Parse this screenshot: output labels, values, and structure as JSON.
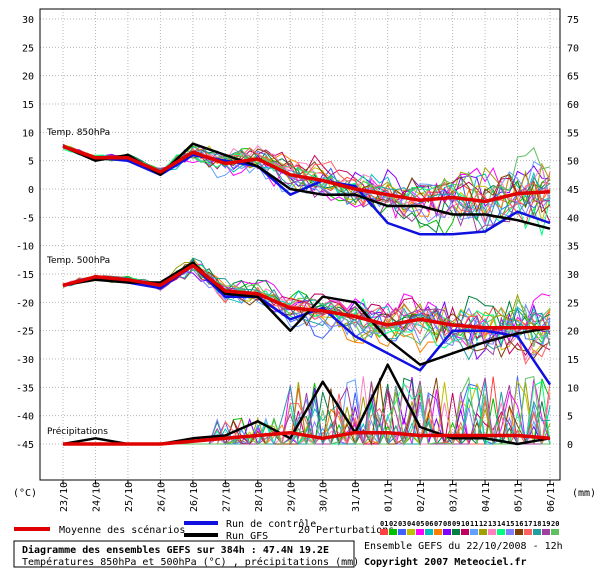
{
  "chart_data": {
    "type": "line",
    "x_dates": [
      "23/10",
      "24/10",
      "25/10",
      "26/10",
      "26/10",
      "27/10",
      "28/10",
      "29/10",
      "30/10",
      "31/10",
      "01/11",
      "02/11",
      "03/11",
      "04/11",
      "05/11",
      "06/11"
    ],
    "left_yticks": [
      "30",
      "25",
      "20",
      "15",
      "10",
      "5",
      "0",
      "-5",
      "-10",
      "-15",
      "-20",
      "-25",
      "-30",
      "-35",
      "-40",
      "-45"
    ],
    "right_yticks": [
      "75",
      "70",
      "65",
      "60",
      "55",
      "50",
      "45",
      "40",
      "35",
      "30",
      "25",
      "20",
      "15",
      "10",
      "5",
      "0"
    ],
    "ylim_left": [
      -45,
      30
    ],
    "ylim_right": [
      0,
      75
    ],
    "left_unit": "(°C)",
    "right_unit": "(mm)",
    "panels": {
      "t850": "Temp. 850hPa",
      "t500": "Temp. 500hPa",
      "precip": "Précipitations"
    },
    "series": [
      {
        "name": "Moyenne des scénarios",
        "color": "#e00000",
        "t850": [
          7.5,
          5.5,
          5.5,
          3,
          6.5,
          4.5,
          5.3,
          2.5,
          1.5,
          0,
          -1,
          -2,
          -1.5,
          -2.2,
          -0.8,
          -0.5
        ],
        "t500": [
          -17,
          -15.5,
          -16,
          -17,
          -13.5,
          -18,
          -18.5,
          -21,
          -21.5,
          -22.5,
          -24,
          -23,
          -24,
          -24.5,
          -24.5,
          -24.5
        ],
        "precip": [
          0,
          0,
          0,
          0,
          0.5,
          1,
          1.5,
          2,
          1,
          2,
          2,
          1.5,
          1.5,
          1.5,
          1.5,
          1
        ]
      },
      {
        "name": "Run de contrôle",
        "color": "#1010e0",
        "t850": [
          7.5,
          5.5,
          5,
          2.5,
          6,
          5,
          4,
          -1,
          1.5,
          0.5,
          -6,
          -8,
          -8,
          -7.5,
          -4,
          -6
        ],
        "t500": [
          -17,
          -15.5,
          -16.5,
          -17.5,
          -13.5,
          -19,
          -19,
          -23,
          -21,
          -26,
          -29,
          -32,
          -25,
          -25,
          -26,
          -34.5
        ]
      },
      {
        "name": "Run GFS",
        "color": "#000000",
        "t850": [
          7.5,
          5,
          6,
          2.5,
          8,
          6,
          4,
          0,
          -1,
          -1,
          -3,
          -3,
          -4.5,
          -4.5,
          -5.5,
          -7
        ],
        "t500": [
          -17,
          -16,
          -16.5,
          -16.5,
          -13,
          -18.5,
          -19,
          -25,
          -19,
          -20,
          -26.5,
          -31,
          -29,
          -27,
          -25.5,
          -24.5
        ],
        "precip": [
          0,
          1,
          0,
          0,
          1,
          1.5,
          4,
          1,
          11,
          2,
          14,
          3,
          1,
          1,
          0,
          1
        ]
      }
    ],
    "legend": {
      "mean": "Moyenne des scénarios",
      "control": "Run de contrôle",
      "gfs": "Run GFS",
      "perturbations": "20 Perturbations",
      "pert_numbers": [
        "01",
        "02",
        "03",
        "04",
        "05",
        "06",
        "07",
        "08",
        "09",
        "10",
        "11",
        "12",
        "13",
        "14",
        "15",
        "16",
        "17",
        "18",
        "19",
        "20"
      ],
      "pert_colors": [
        "#ff4040",
        "#00c000",
        "#4060ff",
        "#c0c000",
        "#ff00ff",
        "#00c0c0",
        "#ff8000",
        "#8000ff",
        "#008040",
        "#c00060",
        "#60a0ff",
        "#a0a000",
        "#ff80c0",
        "#00ff80",
        "#8080ff",
        "#804000",
        "#ff6060",
        "#20a0a0",
        "#a040a0",
        "#60c060"
      ]
    },
    "footer": {
      "title": "Diagramme des ensembles GEFS sur 384h : 47.4N 19.2E",
      "subtitle": "Températures 850hPa et 500hPa (°C) , précipitations (mm)",
      "run": "Ensemble GEFS du 22/10/2008 - 12h",
      "copyright": "Copyright 2007 Meteociel.fr"
    }
  }
}
